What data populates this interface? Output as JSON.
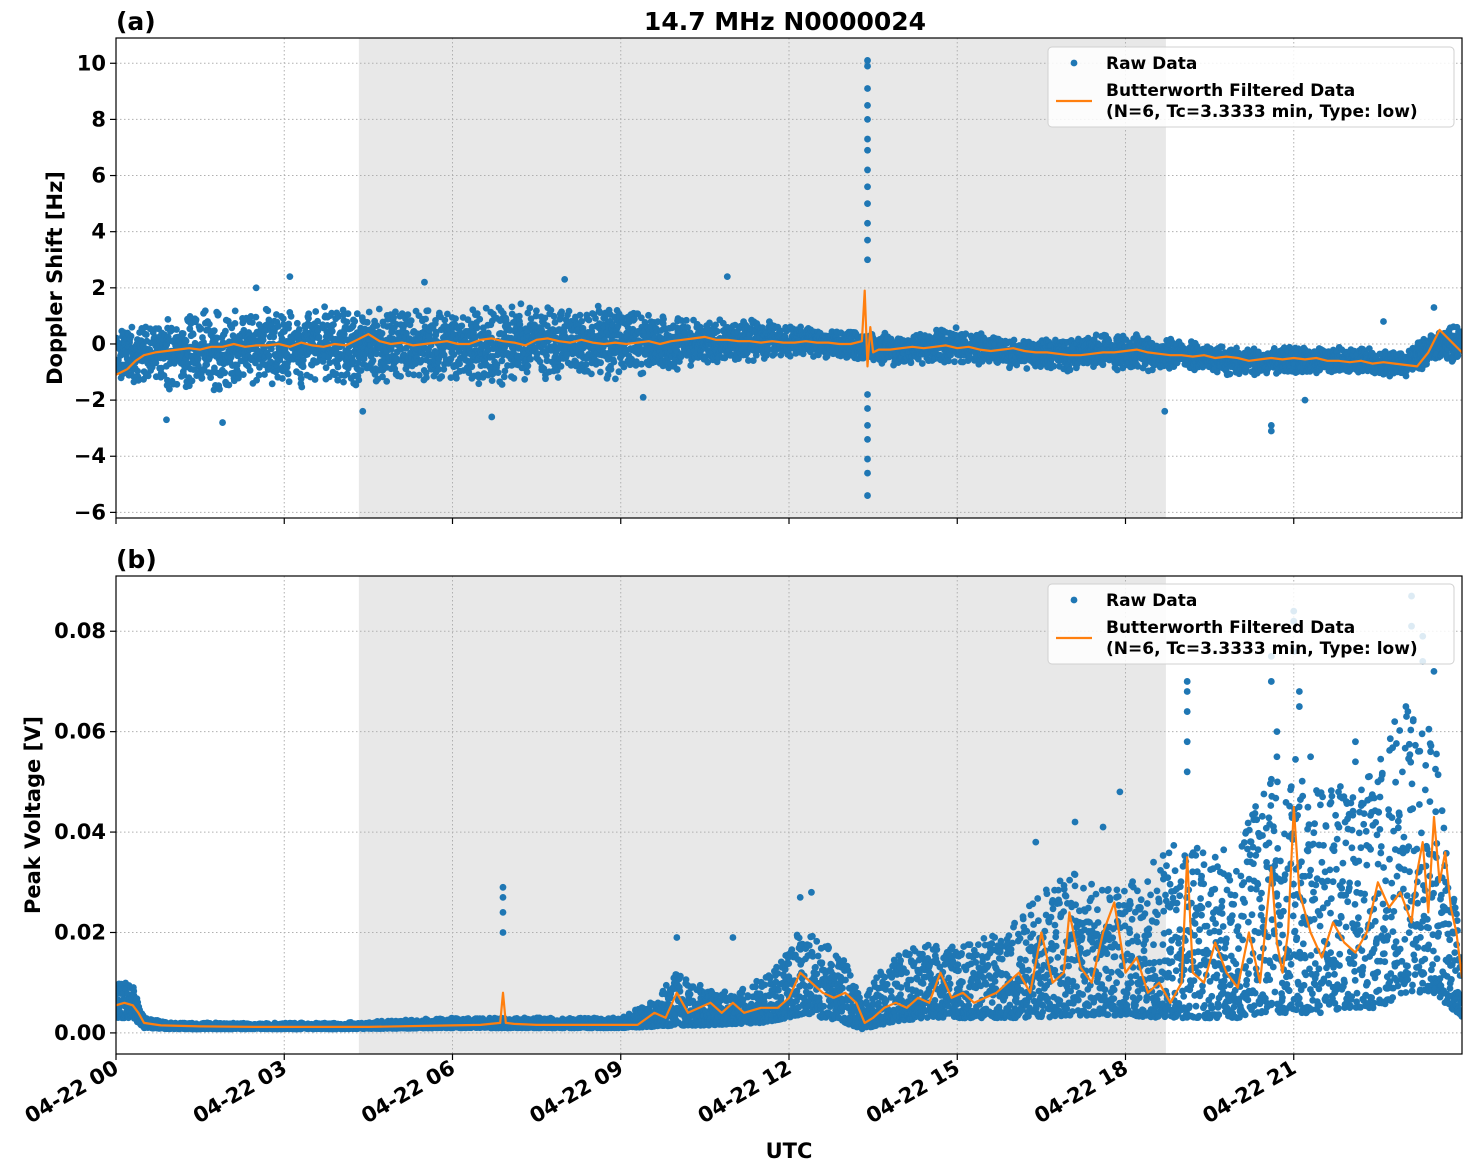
{
  "title": "14.7 MHz N0000024",
  "xlabel": "UTC",
  "x_tick_labels": [
    "04-22 00",
    "04-22 03",
    "04-22 06",
    "04-22 09",
    "04-22 12",
    "04-22 15",
    "04-22 18",
    "04-22 21"
  ],
  "colors": {
    "raw": "#1f77b4",
    "filtered": "#ff7f0e",
    "shade": "#e8e8e8",
    "grid": "#b0b0b0"
  },
  "chart_data": [
    {
      "type": "scatter",
      "panel_label": "(a)",
      "ylabel": "Doppler Shift [Hz]",
      "xlim": [
        0,
        24
      ],
      "x_unit": "hours UTC on 04-22",
      "ylim": [
        -6.2,
        10.9
      ],
      "y_ticks": [
        -6,
        -4,
        -2,
        0,
        2,
        4,
        6,
        8,
        10
      ],
      "y_tick_labels": [
        "−6",
        "−4",
        "−2",
        "0",
        "2",
        "4",
        "6",
        "8",
        "10"
      ],
      "shaded_x_range": [
        4.33,
        18.72
      ],
      "grid": true,
      "legend_position": "upper-right",
      "legend": [
        "Raw Data",
        "Butterworth Filtered Data",
        "(N=6, Tc=3.3333 min, Type: low)"
      ],
      "series": [
        {
          "name": "Raw Data",
          "kind": "band",
          "x": [
            0,
            0.5,
            1,
            1.5,
            2,
            2.5,
            3,
            3.5,
            4,
            4.5,
            5,
            5.5,
            6,
            6.5,
            7,
            7.5,
            8,
            8.5,
            9,
            9.5,
            10,
            10.5,
            11,
            11.5,
            12,
            12.5,
            13,
            13.5,
            14,
            14.5,
            15,
            15.5,
            16,
            16.5,
            17,
            17.5,
            18,
            18.5,
            19,
            19.5,
            20,
            20.5,
            21,
            21.5,
            22,
            22.5,
            23,
            23.5,
            24
          ],
          "low": [
            -1.3,
            -1.6,
            -1.7,
            -1.8,
            -1.7,
            -1.6,
            -1.6,
            -1.6,
            -1.7,
            -1.6,
            -1.6,
            -1.5,
            -1.5,
            -1.6,
            -1.5,
            -1.4,
            -1.4,
            -1.4,
            -1.3,
            -1.2,
            -1.0,
            -0.8,
            -0.7,
            -0.6,
            -0.5,
            -0.5,
            -0.6,
            -0.7,
            -0.8,
            -0.7,
            -0.7,
            -0.8,
            -0.9,
            -0.9,
            -1.0,
            -0.9,
            -1.0,
            -1.0,
            -1.0,
            -1.1,
            -1.2,
            -1.1,
            -1.1,
            -1.1,
            -1.1,
            -1.2,
            -1.2,
            -0.7,
            -0.8
          ],
          "high": [
            0.4,
            0.9,
            1.1,
            1.2,
            1.3,
            1.3,
            1.3,
            1.4,
            1.4,
            1.4,
            1.4,
            1.4,
            1.4,
            1.4,
            1.5,
            1.5,
            1.5,
            1.4,
            1.4,
            1.2,
            1.0,
            0.9,
            0.9,
            0.9,
            0.7,
            0.6,
            0.6,
            0.5,
            0.4,
            0.5,
            0.6,
            0.4,
            0.3,
            0.3,
            0.3,
            0.4,
            0.4,
            0.3,
            0.3,
            0.0,
            -0.1,
            -0.1,
            -0.1,
            -0.1,
            -0.1,
            -0.1,
            -0.1,
            0.4,
            0.9
          ]
        },
        {
          "name": "Raw Data",
          "kind": "points",
          "x": [
            0.9,
            1.9,
            2.5,
            3.1,
            4.4,
            5.5,
            6.7,
            8.0,
            9.4,
            10.9,
            13.4,
            13.4,
            13.4,
            13.4,
            13.4,
            13.4,
            13.4,
            13.4,
            13.4,
            13.4,
            13.4,
            13.4,
            13.4,
            13.4,
            13.4,
            13.4,
            13.4,
            13.4,
            13.4,
            13.4,
            18.7,
            20.6,
            20.6,
            21.2,
            22.6,
            23.5
          ],
          "y": [
            -2.7,
            -2.8,
            2.0,
            2.4,
            -2.4,
            2.2,
            -2.6,
            2.3,
            -1.9,
            2.4,
            10.1,
            9.9,
            9.1,
            8.5,
            8.0,
            7.3,
            6.9,
            6.2,
            5.6,
            5.0,
            4.3,
            3.7,
            3.0,
            -1.8,
            -2.3,
            -2.9,
            -3.4,
            -4.1,
            -4.6,
            -5.4,
            -2.4,
            -2.9,
            -3.1,
            -2.0,
            0.8,
            1.3
          ]
        },
        {
          "name": "Butterworth Filtered Data",
          "kind": "line",
          "x": [
            0,
            0.1,
            0.2,
            0.35,
            0.5,
            0.7,
            0.9,
            1.1,
            1.3,
            1.5,
            1.7,
            1.9,
            2.1,
            2.3,
            2.5,
            2.7,
            2.9,
            3.1,
            3.3,
            3.5,
            3.7,
            3.9,
            4.1,
            4.3,
            4.5,
            4.7,
            4.9,
            5.1,
            5.3,
            5.5,
            5.7,
            5.9,
            6.1,
            6.3,
            6.5,
            6.7,
            6.9,
            7.1,
            7.3,
            7.5,
            7.7,
            7.9,
            8.1,
            8.3,
            8.5,
            8.7,
            8.9,
            9.1,
            9.3,
            9.5,
            9.7,
            9.9,
            10.1,
            10.3,
            10.5,
            10.7,
            10.9,
            11.1,
            11.3,
            11.5,
            11.7,
            11.9,
            12.1,
            12.3,
            12.5,
            12.7,
            12.9,
            13.1,
            13.3,
            13.35,
            13.4,
            13.45,
            13.5,
            13.6,
            13.8,
            14.0,
            14.2,
            14.4,
            14.6,
            14.8,
            15.0,
            15.2,
            15.4,
            15.6,
            15.8,
            16.0,
            16.2,
            16.4,
            16.6,
            16.8,
            17.0,
            17.2,
            17.4,
            17.6,
            17.8,
            18.0,
            18.2,
            18.4,
            18.6,
            18.8,
            19.0,
            19.2,
            19.4,
            19.6,
            19.8,
            20.0,
            20.2,
            20.4,
            20.6,
            20.8,
            21.0,
            21.2,
            21.4,
            21.6,
            21.8,
            22.0,
            22.2,
            22.4,
            22.6,
            22.8,
            23.0,
            23.2,
            23.4,
            23.6,
            23.8,
            24.0
          ],
          "y": [
            -1.1,
            -1.0,
            -0.9,
            -0.6,
            -0.4,
            -0.3,
            -0.25,
            -0.2,
            -0.15,
            -0.2,
            -0.1,
            -0.1,
            0.0,
            -0.1,
            -0.05,
            -0.05,
            0.0,
            -0.1,
            0.05,
            -0.05,
            -0.1,
            0.0,
            -0.05,
            0.15,
            0.35,
            0.1,
            0.0,
            0.05,
            -0.05,
            0.0,
            0.05,
            0.1,
            0.0,
            0.0,
            0.15,
            0.2,
            0.1,
            0.05,
            -0.05,
            0.15,
            0.2,
            0.1,
            0.05,
            0.15,
            0.05,
            0.0,
            0.05,
            0.0,
            0.05,
            0.1,
            0.0,
            0.1,
            0.15,
            0.2,
            0.25,
            0.15,
            0.15,
            0.1,
            0.1,
            0.05,
            0.1,
            0.05,
            0.05,
            0.1,
            0.05,
            0.05,
            0.0,
            0.0,
            0.1,
            1.9,
            -0.8,
            0.6,
            -0.3,
            -0.2,
            -0.2,
            -0.15,
            -0.1,
            -0.15,
            -0.1,
            -0.05,
            -0.15,
            -0.1,
            -0.2,
            -0.25,
            -0.2,
            -0.15,
            -0.25,
            -0.3,
            -0.3,
            -0.35,
            -0.4,
            -0.4,
            -0.35,
            -0.3,
            -0.3,
            -0.25,
            -0.2,
            -0.3,
            -0.35,
            -0.4,
            -0.4,
            -0.45,
            -0.4,
            -0.5,
            -0.45,
            -0.5,
            -0.6,
            -0.55,
            -0.5,
            -0.55,
            -0.5,
            -0.55,
            -0.5,
            -0.6,
            -0.6,
            -0.65,
            -0.6,
            -0.7,
            -0.65,
            -0.7,
            -0.75,
            -0.8,
            -0.3,
            0.5,
            0.1,
            -0.3
          ]
        }
      ]
    },
    {
      "type": "scatter",
      "panel_label": "(b)",
      "ylabel": "Peak Voltage [V]",
      "xlim": [
        0,
        24
      ],
      "x_unit": "hours UTC on 04-22",
      "ylim": [
        -0.0042,
        0.091
      ],
      "y_ticks": [
        0.0,
        0.02,
        0.04,
        0.06,
        0.08
      ],
      "y_tick_labels": [
        "0.00",
        "0.02",
        "0.04",
        "0.06",
        "0.08"
      ],
      "shaded_x_range": [
        4.33,
        18.72
      ],
      "grid": true,
      "legend_position": "upper-right",
      "legend": [
        "Raw Data",
        "Butterworth Filtered Data",
        "(N=6, Tc=3.3333 min, Type: low)"
      ],
      "series": [
        {
          "name": "Raw Data",
          "kind": "band",
          "x": [
            0,
            0.3,
            0.5,
            1,
            2,
            3,
            4,
            5,
            6,
            7,
            8,
            9,
            9.5,
            10,
            10.5,
            11,
            11.5,
            12,
            12.3,
            12.6,
            13,
            13.3,
            13.6,
            14,
            14.5,
            15,
            15.5,
            16,
            16.5,
            17,
            17.5,
            18,
            18.5,
            19,
            19.5,
            20,
            20.5,
            21,
            21.5,
            22,
            22.5,
            23,
            23.5,
            24
          ],
          "low": [
            0.003,
            0.003,
            0.001,
            0.0008,
            0.0008,
            0.0008,
            0.0008,
            0.0009,
            0.001,
            0.001,
            0.001,
            0.001,
            0.0012,
            0.0015,
            0.0015,
            0.0018,
            0.002,
            0.003,
            0.004,
            0.003,
            0.002,
            0.0008,
            0.0015,
            0.0025,
            0.003,
            0.003,
            0.003,
            0.003,
            0.003,
            0.0035,
            0.0035,
            0.0035,
            0.003,
            0.003,
            0.003,
            0.003,
            0.004,
            0.004,
            0.004,
            0.005,
            0.005,
            0.008,
            0.008,
            0.003
          ],
          "high": [
            0.01,
            0.01,
            0.003,
            0.002,
            0.002,
            0.002,
            0.002,
            0.0025,
            0.003,
            0.003,
            0.003,
            0.003,
            0.006,
            0.012,
            0.009,
            0.008,
            0.011,
            0.016,
            0.024,
            0.018,
            0.015,
            0.006,
            0.012,
            0.016,
            0.018,
            0.017,
            0.019,
            0.022,
            0.028,
            0.032,
            0.03,
            0.03,
            0.033,
            0.04,
            0.035,
            0.04,
            0.05,
            0.055,
            0.048,
            0.05,
            0.055,
            0.065,
            0.06,
            0.015
          ]
        },
        {
          "name": "Raw Data",
          "kind": "points",
          "x": [
            6.9,
            6.9,
            6.9,
            6.9,
            10.0,
            11.0,
            12.2,
            12.4,
            16.4,
            17.1,
            17.6,
            17.9,
            18.5,
            19.1,
            19.1,
            19.1,
            19.1,
            19.1,
            19.6,
            20.6,
            20.6,
            20.7,
            20.7,
            21.0,
            21.0,
            21.0,
            21.1,
            21.1,
            21.3,
            22.1,
            22.1,
            22.5,
            22.8,
            23.0,
            23.1,
            23.1,
            23.3,
            23.3,
            23.5
          ],
          "y": [
            0.029,
            0.027,
            0.024,
            0.02,
            0.019,
            0.019,
            0.027,
            0.028,
            0.038,
            0.042,
            0.041,
            0.048,
            0.034,
            0.07,
            0.068,
            0.064,
            0.058,
            0.052,
            0.035,
            0.075,
            0.07,
            0.06,
            0.055,
            0.084,
            0.082,
            0.076,
            0.068,
            0.065,
            0.055,
            0.058,
            0.054,
            0.05,
            0.062,
            0.065,
            0.087,
            0.081,
            0.079,
            0.074,
            0.072
          ]
        },
        {
          "name": "Butterworth Filtered Data",
          "kind": "line",
          "x": [
            0,
            0.15,
            0.3,
            0.4,
            0.5,
            0.8,
            1.5,
            2.5,
            3.5,
            4.5,
            5.5,
            6.5,
            6.85,
            6.9,
            6.95,
            7.1,
            7.5,
            8.5,
            9.3,
            9.6,
            9.8,
            10.0,
            10.2,
            10.4,
            10.6,
            10.8,
            11.0,
            11.2,
            11.5,
            11.8,
            12.0,
            12.2,
            12.4,
            12.6,
            12.8,
            13.0,
            13.2,
            13.35,
            13.5,
            13.7,
            13.9,
            14.1,
            14.3,
            14.5,
            14.7,
            14.9,
            15.1,
            15.3,
            15.5,
            15.7,
            15.9,
            16.1,
            16.3,
            16.5,
            16.7,
            16.9,
            17.0,
            17.2,
            17.4,
            17.6,
            17.8,
            18.0,
            18.2,
            18.4,
            18.6,
            18.8,
            19.0,
            19.1,
            19.2,
            19.4,
            19.6,
            19.8,
            20.0,
            20.2,
            20.4,
            20.6,
            20.7,
            20.8,
            20.9,
            21.0,
            21.1,
            21.3,
            21.5,
            21.7,
            21.9,
            22.1,
            22.3,
            22.5,
            22.7,
            22.9,
            23.1,
            23.2,
            23.3,
            23.4,
            23.5,
            23.6,
            23.7,
            23.8,
            23.9,
            24.0
          ],
          "y": [
            0.0055,
            0.006,
            0.0055,
            0.004,
            0.002,
            0.0015,
            0.0013,
            0.0012,
            0.0012,
            0.0012,
            0.0014,
            0.0016,
            0.002,
            0.008,
            0.002,
            0.0018,
            0.0016,
            0.0016,
            0.0016,
            0.004,
            0.003,
            0.008,
            0.004,
            0.005,
            0.006,
            0.004,
            0.006,
            0.004,
            0.005,
            0.005,
            0.007,
            0.012,
            0.01,
            0.008,
            0.007,
            0.008,
            0.006,
            0.002,
            0.003,
            0.005,
            0.006,
            0.005,
            0.007,
            0.006,
            0.012,
            0.007,
            0.008,
            0.006,
            0.007,
            0.008,
            0.01,
            0.012,
            0.008,
            0.02,
            0.01,
            0.012,
            0.024,
            0.013,
            0.01,
            0.02,
            0.026,
            0.012,
            0.015,
            0.008,
            0.01,
            0.006,
            0.01,
            0.035,
            0.012,
            0.01,
            0.018,
            0.012,
            0.009,
            0.02,
            0.01,
            0.033,
            0.018,
            0.012,
            0.02,
            0.045,
            0.028,
            0.02,
            0.015,
            0.022,
            0.018,
            0.016,
            0.02,
            0.03,
            0.025,
            0.028,
            0.022,
            0.032,
            0.038,
            0.024,
            0.043,
            0.03,
            0.036,
            0.025,
            0.02,
            0.011
          ]
        }
      ]
    }
  ]
}
